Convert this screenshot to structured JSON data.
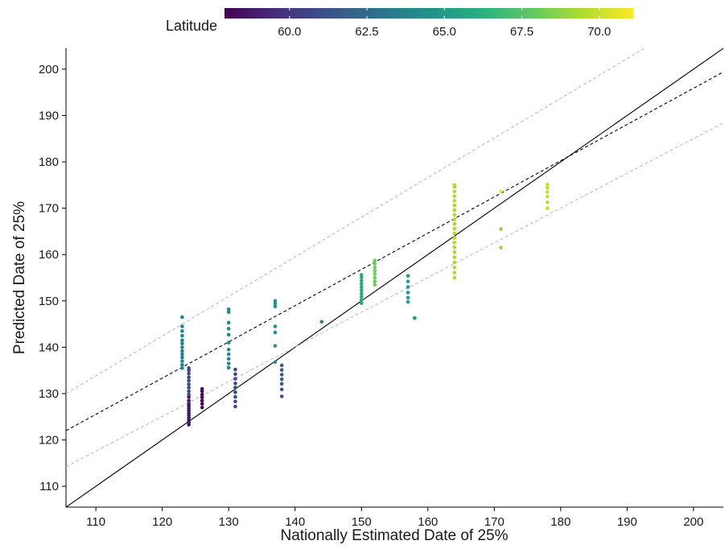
{
  "chart_data": {
    "type": "scatter",
    "xlabel": "Nationally Estimated Date of 25%",
    "ylabel": "Predicted Date of 25%",
    "xlim": [
      105.5,
      204.5
    ],
    "ylim": [
      105.5,
      204.5
    ],
    "xticks": [
      110,
      120,
      130,
      140,
      150,
      160,
      170,
      180,
      190,
      200
    ],
    "yticks": [
      110,
      120,
      130,
      140,
      150,
      160,
      170,
      180,
      190,
      200
    ],
    "grid": false,
    "colorbar": {
      "label": "Latitude",
      "ticks": [
        60.0,
        62.5,
        65.0,
        67.5,
        70.0
      ],
      "tick_labels": [
        "60.0",
        "62.5",
        "65.0",
        "67.5",
        "70.0"
      ],
      "range": [
        57.9,
        71.1
      ],
      "colormap": "viridis",
      "placement": "top"
    },
    "lines": [
      {
        "kind": "identity",
        "style": "solid",
        "color": "#000000",
        "slope": 1,
        "intercept": 0
      },
      {
        "kind": "fit",
        "style": "dashed",
        "color": "#000000",
        "x": [
          105.5,
          204.5
        ],
        "y": [
          122.0,
          199.4
        ]
      },
      {
        "kind": "upper-bound",
        "style": "dashed",
        "color": "#bdbdbd",
        "x": [
          105.5,
          192.5
        ],
        "y": [
          130.0,
          204.4
        ]
      },
      {
        "kind": "lower-bound",
        "style": "dashed",
        "color": "#bdbdbd",
        "x": [
          105.5,
          204.5
        ],
        "y": [
          114.2,
          188.4
        ]
      }
    ],
    "series": [
      {
        "x": 123,
        "lat": 63.6,
        "y": [
          146.5,
          144.5,
          143.5,
          142.5,
          141.5,
          140.8,
          140.0,
          139.2,
          138.5,
          137.8,
          137.0,
          136.2,
          135.5
        ]
      },
      {
        "x": 124,
        "lat": 58.7,
        "y": [
          123.3,
          123.8,
          124.3,
          124.8,
          125.3,
          125.8,
          126.3,
          126.8,
          127.3,
          127.8,
          128.5,
          129.3
        ]
      },
      {
        "x": 124,
        "lat": 60.7,
        "y": [
          129.8,
          130.5,
          131.3,
          132.0,
          132.8,
          133.5,
          134.3,
          135.0,
          135.5
        ]
      },
      {
        "x": 126,
        "lat": 58.3,
        "y": [
          127.0,
          127.8,
          128.5,
          129.2,
          129.8,
          130.5,
          131.0
        ]
      },
      {
        "x": 130,
        "lat": 63.9,
        "y": [
          148.2,
          147.6,
          145.3,
          144.0,
          142.7,
          141.0,
          139.5,
          138.5,
          137.5,
          136.5,
          135.6
        ]
      },
      {
        "x": 131,
        "lat": 60.7,
        "y": [
          127.2,
          128.3,
          129.3,
          130.3,
          131.3,
          132.2,
          133.2,
          134.2,
          135.2
        ]
      },
      {
        "x": 137,
        "lat": 64.5,
        "y": [
          150.0,
          149.4,
          148.8,
          144.5,
          143.2,
          140.3,
          136.8
        ]
      },
      {
        "x": 138,
        "lat": 61.6,
        "y": [
          129.4,
          130.9,
          132.1,
          133.1,
          134.1,
          135.1,
          136.1
        ]
      },
      {
        "x": 144,
        "lat": 63.8,
        "y": [
          145.5
        ]
      },
      {
        "x": 150,
        "lat": 65.9,
        "y": [
          149.5,
          150.2,
          150.9,
          151.6,
          152.3,
          153.0,
          153.7,
          154.4,
          155.1,
          155.6
        ]
      },
      {
        "x": 152,
        "lat": 68.1,
        "y": [
          153.5,
          154.2,
          155.0,
          155.8,
          156.5,
          157.2,
          158.0,
          158.7
        ]
      },
      {
        "x": 157,
        "lat": 65.1,
        "y": [
          149.8,
          150.7,
          151.8,
          153.0,
          154.2,
          155.4
        ]
      },
      {
        "x": 158,
        "lat": 64.7,
        "y": [
          146.3
        ]
      },
      {
        "x": 164,
        "lat": 69.4,
        "y": [
          155.0,
          156.1,
          157.2,
          158.3,
          159.4,
          160.5,
          161.6,
          162.6,
          163.6,
          164.6,
          165.6,
          166.6,
          167.6,
          168.6,
          169.6,
          170.6,
          171.6,
          172.6,
          173.6,
          174.6,
          175.0
        ]
      },
      {
        "x": 171,
        "lat": 69.0,
        "y": [
          161.5,
          165.5
        ]
      },
      {
        "x": 171,
        "lat": 70.6,
        "y": [
          173.6
        ]
      },
      {
        "x": 178,
        "lat": 69.9,
        "y": [
          170.0,
          171.3,
          172.5,
          173.5,
          174.4,
          175.1
        ]
      }
    ]
  }
}
